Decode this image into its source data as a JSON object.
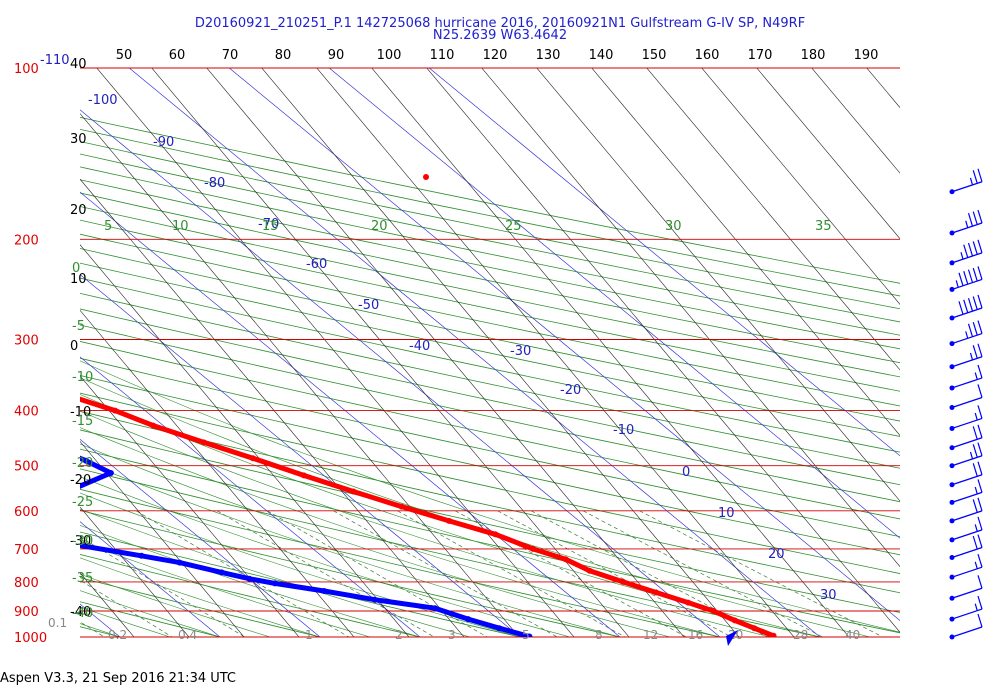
{
  "header": {
    "title_line1": "D20160921_210251_P.1 142725068 hurricane 2016, 20160921N1 Gulfstream G-IV SP, N49RF",
    "title_line2": "N25.2639 W63.4642"
  },
  "footer": {
    "text": "Aspen V3.3, 21 Sep 2016  21:34 UTC"
  },
  "chart_data": {
    "type": "line",
    "subtype": "skew-T log-P diagram",
    "title": "D20160921_210251_P.1 142725068 hurricane 2016, 20160921N1 Gulfstream G-IV SP, N49RF",
    "subtitle": "N25.2639 W63.4642",
    "pressure_axis": {
      "scale": "log",
      "range": [
        100,
        1000
      ],
      "ticks": [
        100,
        200,
        300,
        400,
        500,
        600,
        700,
        800,
        900,
        1000
      ],
      "tick_color": "#e00000"
    },
    "temperature_c_labels": [
      "40",
      "30",
      "20",
      "10",
      "0",
      "-10",
      "-20",
      "-30",
      "-40"
    ],
    "temperature_f_labels": [
      "50",
      "60",
      "70",
      "80",
      "90",
      "100",
      "110",
      "120",
      "130",
      "140",
      "150",
      "160",
      "170",
      "180",
      "190"
    ],
    "isotherm_labels_blue": [
      "-110",
      "-100",
      "-90",
      "-80",
      "-70",
      "-60",
      "-50",
      "-40",
      "-30",
      "-20",
      "-10",
      "0",
      "10",
      "20",
      "30"
    ],
    "mixing_ratio_labels": [
      "0.1",
      "0.2",
      "0.4",
      "1",
      "2",
      "3",
      "5",
      "8",
      "12",
      "16",
      "20",
      "28",
      "40"
    ],
    "dry_adiabat_labels": [
      "5",
      "10",
      "15",
      "20",
      "25",
      "30",
      "35"
    ],
    "moist_adiabat_labels": [
      "0",
      "-5",
      "-10",
      "-15",
      "-20",
      "-25",
      "-30",
      "-35",
      "-40"
    ],
    "grid": true,
    "series": [
      {
        "key": "temperature",
        "color": "#ff0000",
        "temp_c": [
          -43,
          -40,
          -35,
          -30,
          -25,
          -22,
          -19,
          -16,
          -13,
          -11,
          -8,
          -5,
          -2,
          1,
          4,
          7,
          10,
          12,
          14,
          15,
          17,
          19,
          21,
          22.5,
          23.5,
          24.5,
          25.5
        ],
        "pressure_hpa": [
          205,
          225,
          250,
          275,
          300,
          320,
          345,
          375,
          400,
          425,
          455,
          485,
          520,
          555,
          590,
          625,
          660,
          700,
          730,
          765,
          800,
          835,
          870,
          900,
          935,
          965,
          995
        ]
      },
      {
        "key": "dewpoint",
        "color": "#0000ff",
        "temp_c": [
          -62,
          -58,
          -55,
          -58,
          -60,
          -58,
          -55,
          -56,
          -50,
          -47,
          -45,
          -43,
          -38,
          -34,
          -30,
          -28,
          -30,
          -27,
          -24,
          -22,
          -21,
          -26,
          -35,
          -45,
          -55,
          -50,
          -45,
          -33,
          -28,
          -25,
          -22,
          -20,
          -18,
          -14,
          -10,
          -5,
          -3,
          -1,
          1
        ],
        "pressure_hpa": [
          210,
          220,
          235,
          255,
          275,
          290,
          310,
          325,
          335,
          340,
          345,
          360,
          370,
          375,
          380,
          395,
          420,
          440,
          460,
          490,
          515,
          545,
          570,
          575,
          580,
          640,
          665,
          690,
          720,
          740,
          770,
          790,
          805,
          830,
          860,
          890,
          930,
          965,
          998
        ]
      }
    ],
    "dewpoint_scatter_bands": [
      {
        "pressure_hpa": 358,
        "temp_c_range": [
          -58,
          -44
        ]
      },
      {
        "pressure_hpa": 385,
        "temp_c_range": [
          -42,
          -32
        ]
      },
      {
        "pressure_hpa": 580,
        "temp_c_range": [
          -78,
          -40
        ]
      },
      {
        "pressure_hpa": 665,
        "temp_c_range": [
          -70,
          -48
        ]
      },
      {
        "pressure_hpa": 705,
        "temp_c_range": [
          -44,
          -34
        ]
      }
    ],
    "wind_barbs": {
      "pressure_hpa": [
        165,
        195,
        220,
        245,
        275,
        305,
        335,
        365,
        395,
        430,
        465,
        500,
        540,
        580,
        625,
        675,
        725,
        785,
        855,
        930,
        1000
      ],
      "speed_kt": [
        25,
        35,
        45,
        55,
        50,
        35,
        25,
        15,
        10,
        15,
        20,
        25,
        20,
        15,
        20,
        15,
        20,
        15,
        10,
        15,
        10
      ],
      "color": "#0000ff"
    }
  }
}
